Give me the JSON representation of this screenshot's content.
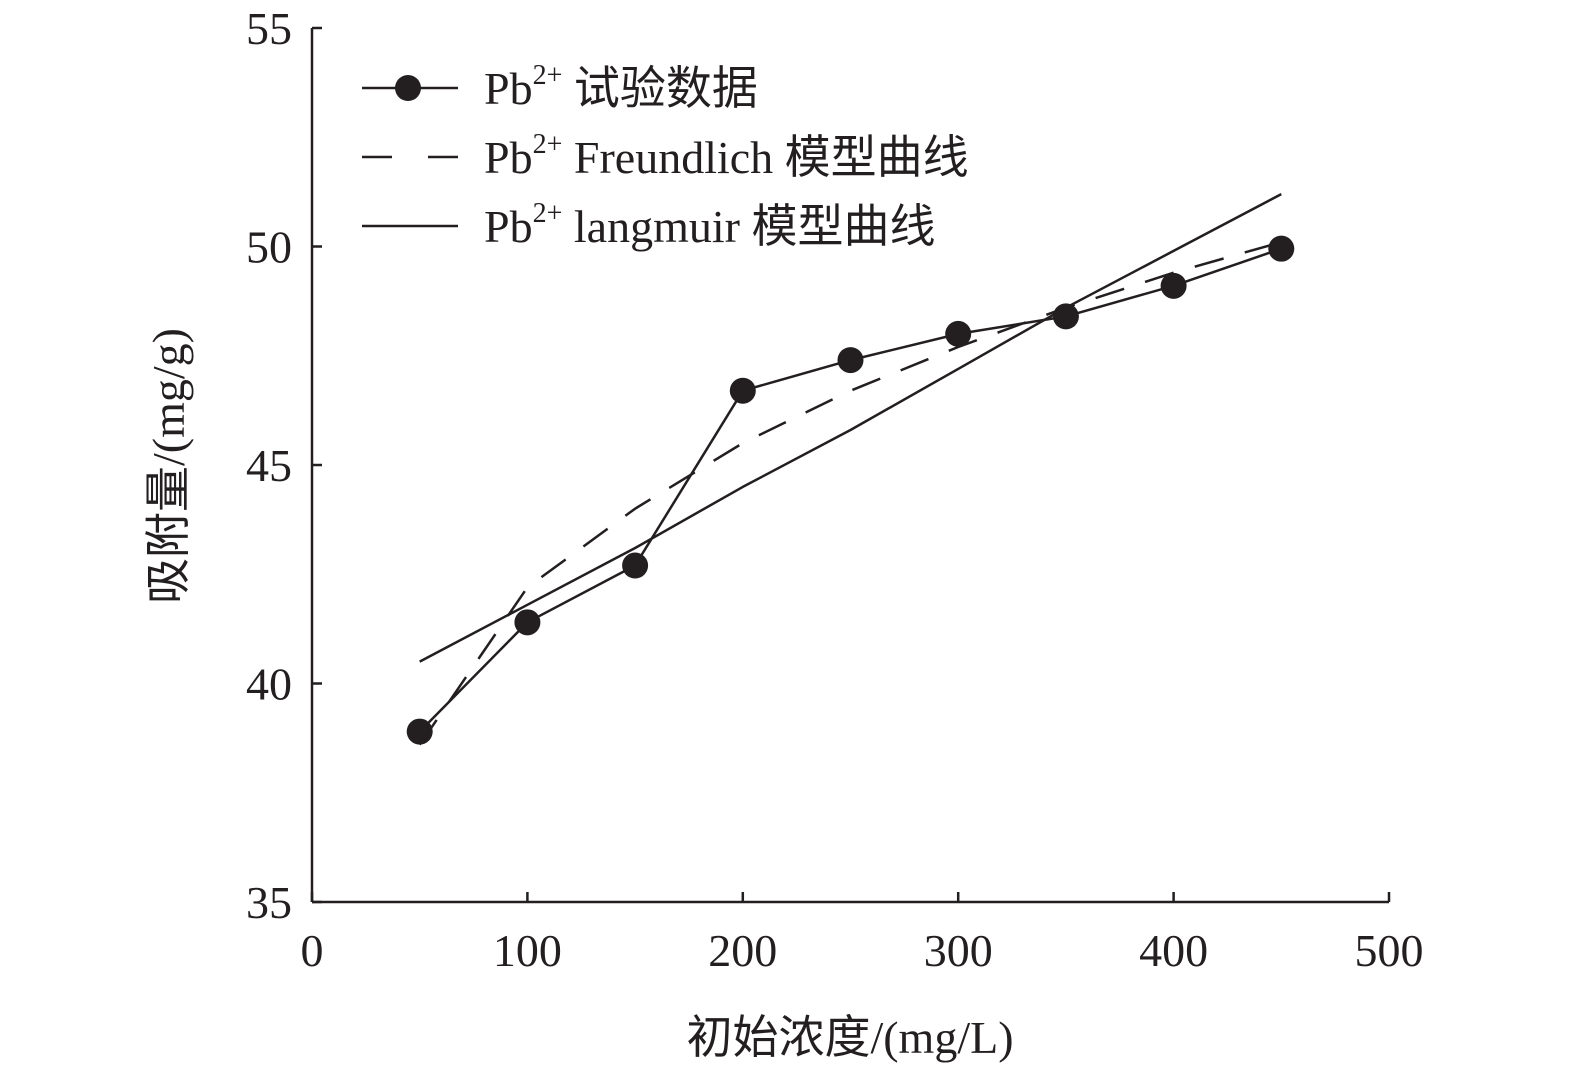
{
  "chart_data": {
    "type": "line",
    "title": "",
    "xlabel": "初始浓度/(mg/L)",
    "ylabel": "吸附量/(mg/g)",
    "xlim": [
      0,
      500
    ],
    "ylim": [
      35,
      55
    ],
    "xticks": [
      "0",
      "100",
      "200",
      "300",
      "400",
      "500"
    ],
    "yticks": [
      "35",
      "40",
      "45",
      "50",
      "55"
    ],
    "grid": false,
    "legend_position": "top-left",
    "series": [
      {
        "name": "Pb2+ 试验数据",
        "legend": {
          "base": "Pb",
          "sup": "2+",
          "rest": " 试验数据"
        },
        "style": "solid-markers",
        "x": [
          50,
          100,
          150,
          200,
          250,
          300,
          350,
          400,
          450
        ],
        "y": [
          38.9,
          41.4,
          42.7,
          46.7,
          47.4,
          48.0,
          48.4,
          49.1,
          49.95
        ]
      },
      {
        "name": "Pb2+ Freundlich 模型曲线",
        "legend": {
          "base": "Pb",
          "sup": "2+",
          "rest": " Freundlich 模型曲线"
        },
        "style": "dashed",
        "x": [
          50,
          100,
          150,
          200,
          250,
          300,
          350,
          400,
          450
        ],
        "y": [
          38.6,
          42.2,
          44.0,
          45.5,
          46.7,
          47.7,
          48.6,
          49.4,
          50.1
        ]
      },
      {
        "name": "Pb2+ langmuir 模型曲线",
        "legend": {
          "base": "Pb",
          "sup": "2+",
          "rest": " langmuir 模型曲线"
        },
        "style": "solid",
        "x": [
          50,
          100,
          150,
          200,
          250,
          300,
          350,
          400,
          450
        ],
        "y": [
          40.5,
          41.8,
          43.1,
          44.5,
          45.8,
          47.2,
          48.6,
          49.9,
          51.2
        ]
      }
    ],
    "colors": {
      "ink": "#231f20",
      "background": "#ffffff"
    }
  }
}
